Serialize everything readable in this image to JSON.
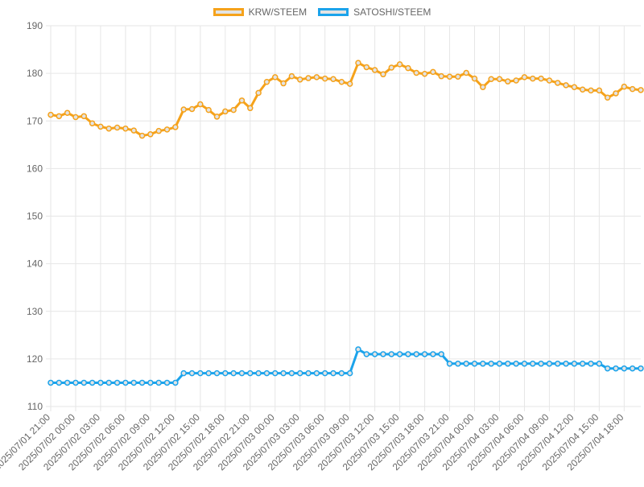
{
  "chart_data": {
    "type": "line",
    "title": "",
    "xlabel": "",
    "ylabel": "",
    "ylim": [
      110,
      190
    ],
    "yticks": [
      110,
      120,
      130,
      140,
      150,
      160,
      170,
      180,
      190
    ],
    "grid": true,
    "legend_position": "top-center",
    "x_tick_labels": [
      "2025/07/01 21:00",
      "2025/07/02 00:00",
      "2025/07/02 03:00",
      "2025/07/02 06:00",
      "2025/07/02 09:00",
      "2025/07/02 12:00",
      "2025/07/02 15:00",
      "2025/07/02 18:00",
      "2025/07/02 21:00",
      "2025/07/03 00:00",
      "2025/07/03 03:00",
      "2025/07/03 06:00",
      "2025/07/03 09:00",
      "2025/07/03 12:00",
      "2025/07/03 15:00",
      "2025/07/03 18:00",
      "2025/07/03 21:00",
      "2025/07/04 00:00",
      "2025/07/04 03:00",
      "2025/07/04 06:00",
      "2025/07/04 09:00",
      "2025/07/04 12:00",
      "2025/07/04 15:00",
      "2025/07/04 18:00"
    ],
    "points_per_tick": 3,
    "series": [
      {
        "name": "KRW/STEEM",
        "color": "#f5a21b",
        "fill": "#e3e3e3",
        "values": [
          171.3,
          171.0,
          171.7,
          170.8,
          171.0,
          169.5,
          168.8,
          168.4,
          168.6,
          168.4,
          168.0,
          166.9,
          167.2,
          167.9,
          168.2,
          168.7,
          172.4,
          172.5,
          173.5,
          172.3,
          170.9,
          172.0,
          172.3,
          174.3,
          172.7,
          175.9,
          178.2,
          179.2,
          177.9,
          179.4,
          178.7,
          179.0,
          179.2,
          178.9,
          178.8,
          178.2,
          177.8,
          182.2,
          181.3,
          180.7,
          179.8,
          181.2,
          181.9,
          181.1,
          180.1,
          179.9,
          180.3,
          179.4,
          179.3,
          179.3,
          180.1,
          178.9,
          177.1,
          178.8,
          178.8,
          178.3,
          178.5,
          179.2,
          178.9,
          178.9,
          178.5,
          178.0,
          177.5,
          177.1,
          176.6,
          176.4,
          176.4,
          174.9,
          175.8,
          177.2,
          176.7,
          176.5
        ]
      },
      {
        "name": "SATOSHI/STEEM",
        "color": "#1ba3eb",
        "fill": "#e3e3e3",
        "values": [
          115,
          115,
          115,
          115,
          115,
          115,
          115,
          115,
          115,
          115,
          115,
          115,
          115,
          115,
          115,
          115,
          117,
          117,
          117,
          117,
          117,
          117,
          117,
          117,
          117,
          117,
          117,
          117,
          117,
          117,
          117,
          117,
          117,
          117,
          117,
          117,
          117,
          122,
          121,
          121,
          121,
          121,
          121,
          121,
          121,
          121,
          121,
          121,
          119,
          119,
          119,
          119,
          119,
          119,
          119,
          119,
          119,
          119,
          119,
          119,
          119,
          119,
          119,
          119,
          119,
          119,
          119,
          118,
          118,
          118,
          118,
          118
        ]
      }
    ]
  }
}
